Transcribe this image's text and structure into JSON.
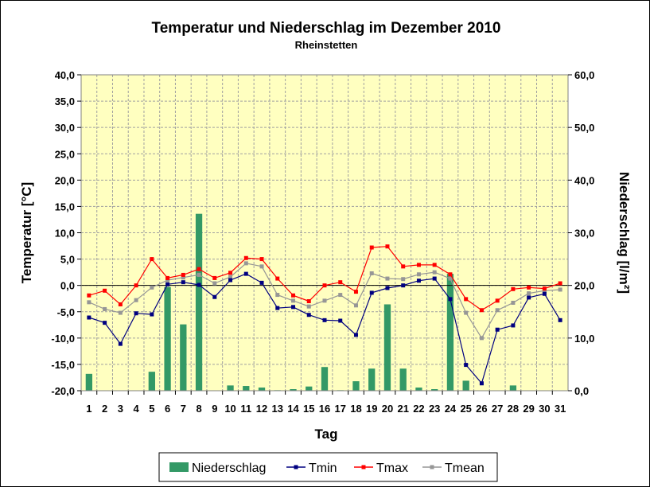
{
  "chart_data": {
    "type": "bar+line",
    "title": "Temperatur und Niederschlag im Dezember 2010",
    "subtitle": "Rheinstetten",
    "xlabel": "Tag",
    "ylabel_left": "Temperatur [°C]",
    "ylabel_right": "Niederschlag [l/m²]",
    "ylim_left": [
      -20,
      40
    ],
    "ylim_right": [
      0,
      60
    ],
    "yticks_left": [
      "40,0",
      "35,0",
      "30,0",
      "25,0",
      "20,0",
      "15,0",
      "10,0",
      "5,0",
      "0,0",
      "-5,0",
      "-10,0",
      "-15,0",
      "-20,0"
    ],
    "yticks_right": [
      "60,0",
      "50,0",
      "40,0",
      "30,0",
      "20,0",
      "10,0",
      "0,0"
    ],
    "categories": [
      "1",
      "2",
      "3",
      "4",
      "5",
      "6",
      "7",
      "8",
      "9",
      "10",
      "11",
      "12",
      "13",
      "14",
      "15",
      "16",
      "17",
      "18",
      "19",
      "20",
      "21",
      "22",
      "23",
      "24",
      "25",
      "26",
      "27",
      "28",
      "29",
      "30",
      "31"
    ],
    "grid": true,
    "legend_position": "bottom",
    "colors": {
      "plot_background": "#ffffc0",
      "bars": "#339966",
      "tmin": "#000080",
      "tmax": "#ff0000",
      "tmean": "#969696",
      "grid": "#a0a0a0"
    },
    "series": [
      {
        "name": "Niederschlag",
        "type": "bar",
        "axis": "right",
        "values": [
          3.2,
          0,
          0,
          0,
          3.6,
          19.7,
          12.6,
          33.6,
          0,
          1.0,
          0.9,
          0.6,
          0.1,
          0.3,
          0.8,
          4.5,
          0.1,
          1.8,
          4.2,
          16.4,
          4.2,
          0.6,
          0.3,
          22.2,
          1.9,
          0,
          0,
          1.0,
          0,
          0,
          0
        ]
      },
      {
        "name": "Tmin",
        "type": "line",
        "axis": "left",
        "values": [
          -6.1,
          -7.1,
          -11.1,
          -5.3,
          -5.5,
          0.2,
          0.6,
          0.1,
          -2.2,
          1.0,
          2.2,
          0.5,
          -4.3,
          -4.1,
          -5.6,
          -6.6,
          -6.7,
          -9.4,
          -1.4,
          -0.5,
          0.0,
          0.9,
          1.3,
          -2.6,
          -15.1,
          -18.6,
          -8.4,
          -7.6,
          -2.3,
          -1.6,
          -6.6
        ]
      },
      {
        "name": "Tmax",
        "type": "line",
        "axis": "left",
        "values": [
          -1.9,
          -1.0,
          -3.6,
          0.0,
          5.0,
          1.4,
          2.0,
          3.1,
          1.4,
          2.4,
          5.2,
          5.0,
          1.3,
          -1.9,
          -3.0,
          0.0,
          0.6,
          -1.2,
          7.2,
          7.4,
          3.6,
          3.9,
          3.9,
          2.1,
          -2.6,
          -4.7,
          -2.9,
          -0.7,
          -0.4,
          -0.6,
          0.4
        ]
      },
      {
        "name": "Tmean",
        "type": "line",
        "axis": "left",
        "values": [
          -3.2,
          -4.5,
          -5.2,
          -2.8,
          -0.4,
          1.0,
          1.5,
          2.0,
          0.4,
          1.6,
          4.2,
          3.6,
          -1.8,
          -2.9,
          -4.0,
          -2.9,
          -1.8,
          -3.8,
          2.3,
          1.3,
          1.2,
          2.1,
          2.5,
          1.3,
          -5.2,
          -10.0,
          -4.7,
          -3.3,
          -1.5,
          -1.0,
          -0.8
        ]
      }
    ]
  }
}
